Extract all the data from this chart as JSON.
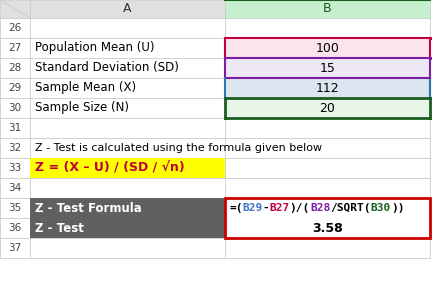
{
  "bg_color": "#ffffff",
  "grid_color": "#c8c8c8",
  "col_header_bg": "#e0e0e0",
  "col_b_header_bg": "#c6efce",
  "row_nums": [
    26,
    27,
    28,
    29,
    30,
    31,
    32,
    33,
    34,
    35,
    36,
    37
  ],
  "rows": {
    "27": {
      "a": "Population Mean (U)",
      "b": "100",
      "b_bg": "#fce4ec",
      "b_border_color": "#c0003c"
    },
    "28": {
      "a": "Standard Deviation (SD)",
      "b": "15",
      "b_bg": "#ede7f6",
      "b_border_color": "#7b1fa2"
    },
    "29": {
      "a": "Sample Mean (X)",
      "b": "112",
      "b_bg": "#dce6f1",
      "b_border_color": "#2e75b6"
    },
    "30": {
      "a": "Sample Size (N)",
      "b": "20",
      "b_bg": "#e8f5e9",
      "b_border_color": "#1b5e20"
    }
  },
  "row32_text": "Z - Test is calculated using the formula given below",
  "row33_formula": "Z = (X – U) / (SD / √n)",
  "row33_bg": "#ffff00",
  "row35_a": "Z - Test Formula",
  "row35_b_parts": [
    {
      "text": "=(",
      "color": "#000000"
    },
    {
      "text": "B29",
      "color": "#4472c4"
    },
    {
      "text": "-",
      "color": "#000000"
    },
    {
      "text": "B27",
      "color": "#c0003c"
    },
    {
      "text": ")/(",
      "color": "#000000"
    },
    {
      "text": "B28",
      "color": "#7b1fa2"
    },
    {
      "text": "/SQRT(",
      "color": "#000000"
    },
    {
      "text": "B30",
      "color": "#1b5e20"
    },
    {
      "text": "))",
      "color": "#000000"
    }
  ],
  "row36_a": "Z - Test",
  "row36_b": "3.58",
  "dark_gray": "#606060",
  "red_border": "#cc0000"
}
